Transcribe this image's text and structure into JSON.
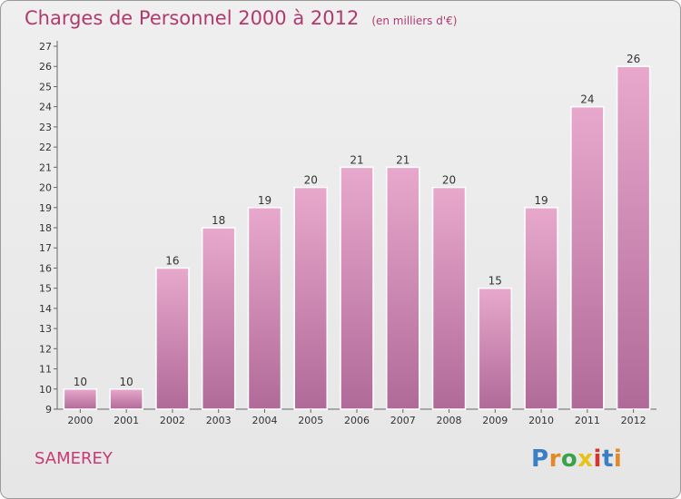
{
  "title": "Charges de Personnel 2000 à 2012",
  "subtitle": "(en milliers d'€)",
  "place": "SAMEREY",
  "brand": {
    "name": "Proxiti",
    "letters": [
      {
        "ch": "P",
        "color": "#3a7fc4"
      },
      {
        "ch": "r",
        "color": "#e08a2a"
      },
      {
        "ch": "o",
        "color": "#3aa24a"
      },
      {
        "ch": "x",
        "color": "#e6c21a"
      },
      {
        "ch": "i",
        "color": "#d2372f"
      },
      {
        "ch": "t",
        "color": "#3a7fc4"
      },
      {
        "ch": "i",
        "color": "#e08a2a"
      }
    ]
  },
  "colors": {
    "bar_light": "#e8a8cc",
    "bar_dark": "#b06a98",
    "axis": "#666666",
    "text": "#333333"
  },
  "chart_data": {
    "type": "bar",
    "categories": [
      "2000",
      "2001",
      "2002",
      "2003",
      "2004",
      "2005",
      "2006",
      "2007",
      "2008",
      "2009",
      "2010",
      "2011",
      "2012"
    ],
    "values": [
      10,
      10,
      16,
      18,
      19,
      20,
      21,
      21,
      20,
      15,
      19,
      24,
      26
    ],
    "ylim": [
      9,
      27
    ],
    "yticks": [
      9,
      10,
      11,
      12,
      13,
      14,
      15,
      16,
      17,
      18,
      19,
      20,
      21,
      22,
      23,
      24,
      25,
      26,
      27
    ],
    "grid": false,
    "xlabel": "",
    "ylabel": ""
  }
}
